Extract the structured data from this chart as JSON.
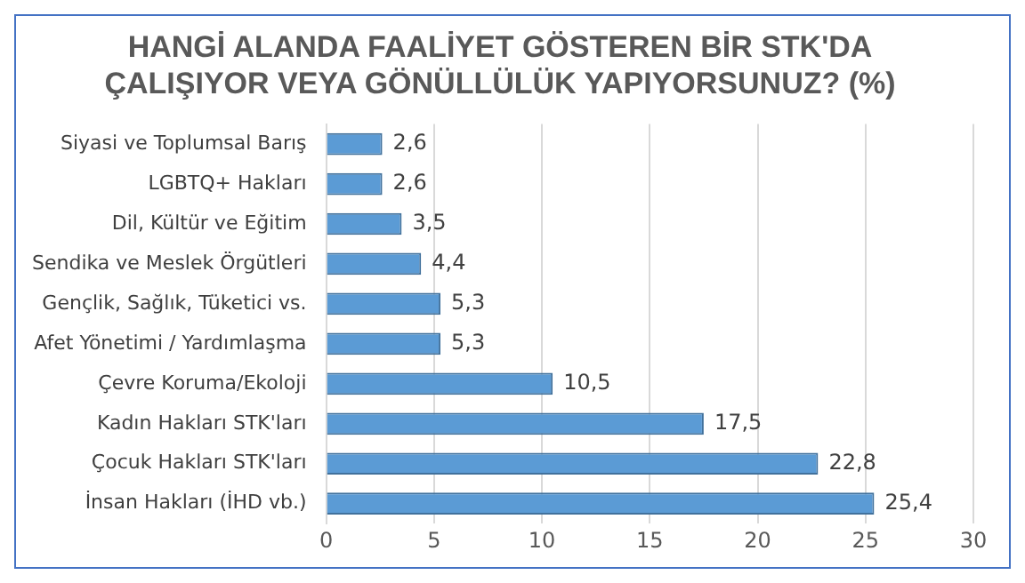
{
  "chart_data": {
    "type": "bar",
    "orientation": "horizontal",
    "title": [
      "HANGİ ALANDA FAALİYET GÖSTEREN BİR STK'DA",
      "ÇALIŞIYOR VEYA GÖNÜLLÜLÜK YAPIYORSUNUZ? (%)"
    ],
    "categories": [
      "Siyasi ve Toplumsal Barış",
      "LGBTQ+ Hakları",
      "Dil, Kültür ve Eğitim",
      "Sendika ve Meslek Örgütleri",
      "Gençlik, Sağlık, Tüketici vs.",
      "Afet Yönetimi / Yardımlaşma",
      "Çevre Koruma/Ekoloji",
      "Kadın Hakları STK'ları",
      "Çocuk Hakları STK'ları",
      "İnsan Hakları (İHD vb.)"
    ],
    "values": [
      2.6,
      2.6,
      3.5,
      4.4,
      5.3,
      5.3,
      10.5,
      17.5,
      22.8,
      25.4
    ],
    "value_labels": [
      "2,6",
      "2,6",
      "3,5",
      "4,4",
      "5,3",
      "5,3",
      "10,5",
      "17,5",
      "22,8",
      "25,4"
    ],
    "color": "#5b9bd5",
    "xlim": [
      0,
      30
    ],
    "xticks": [
      0,
      5,
      10,
      15,
      20,
      25,
      30
    ],
    "grid": "x"
  }
}
